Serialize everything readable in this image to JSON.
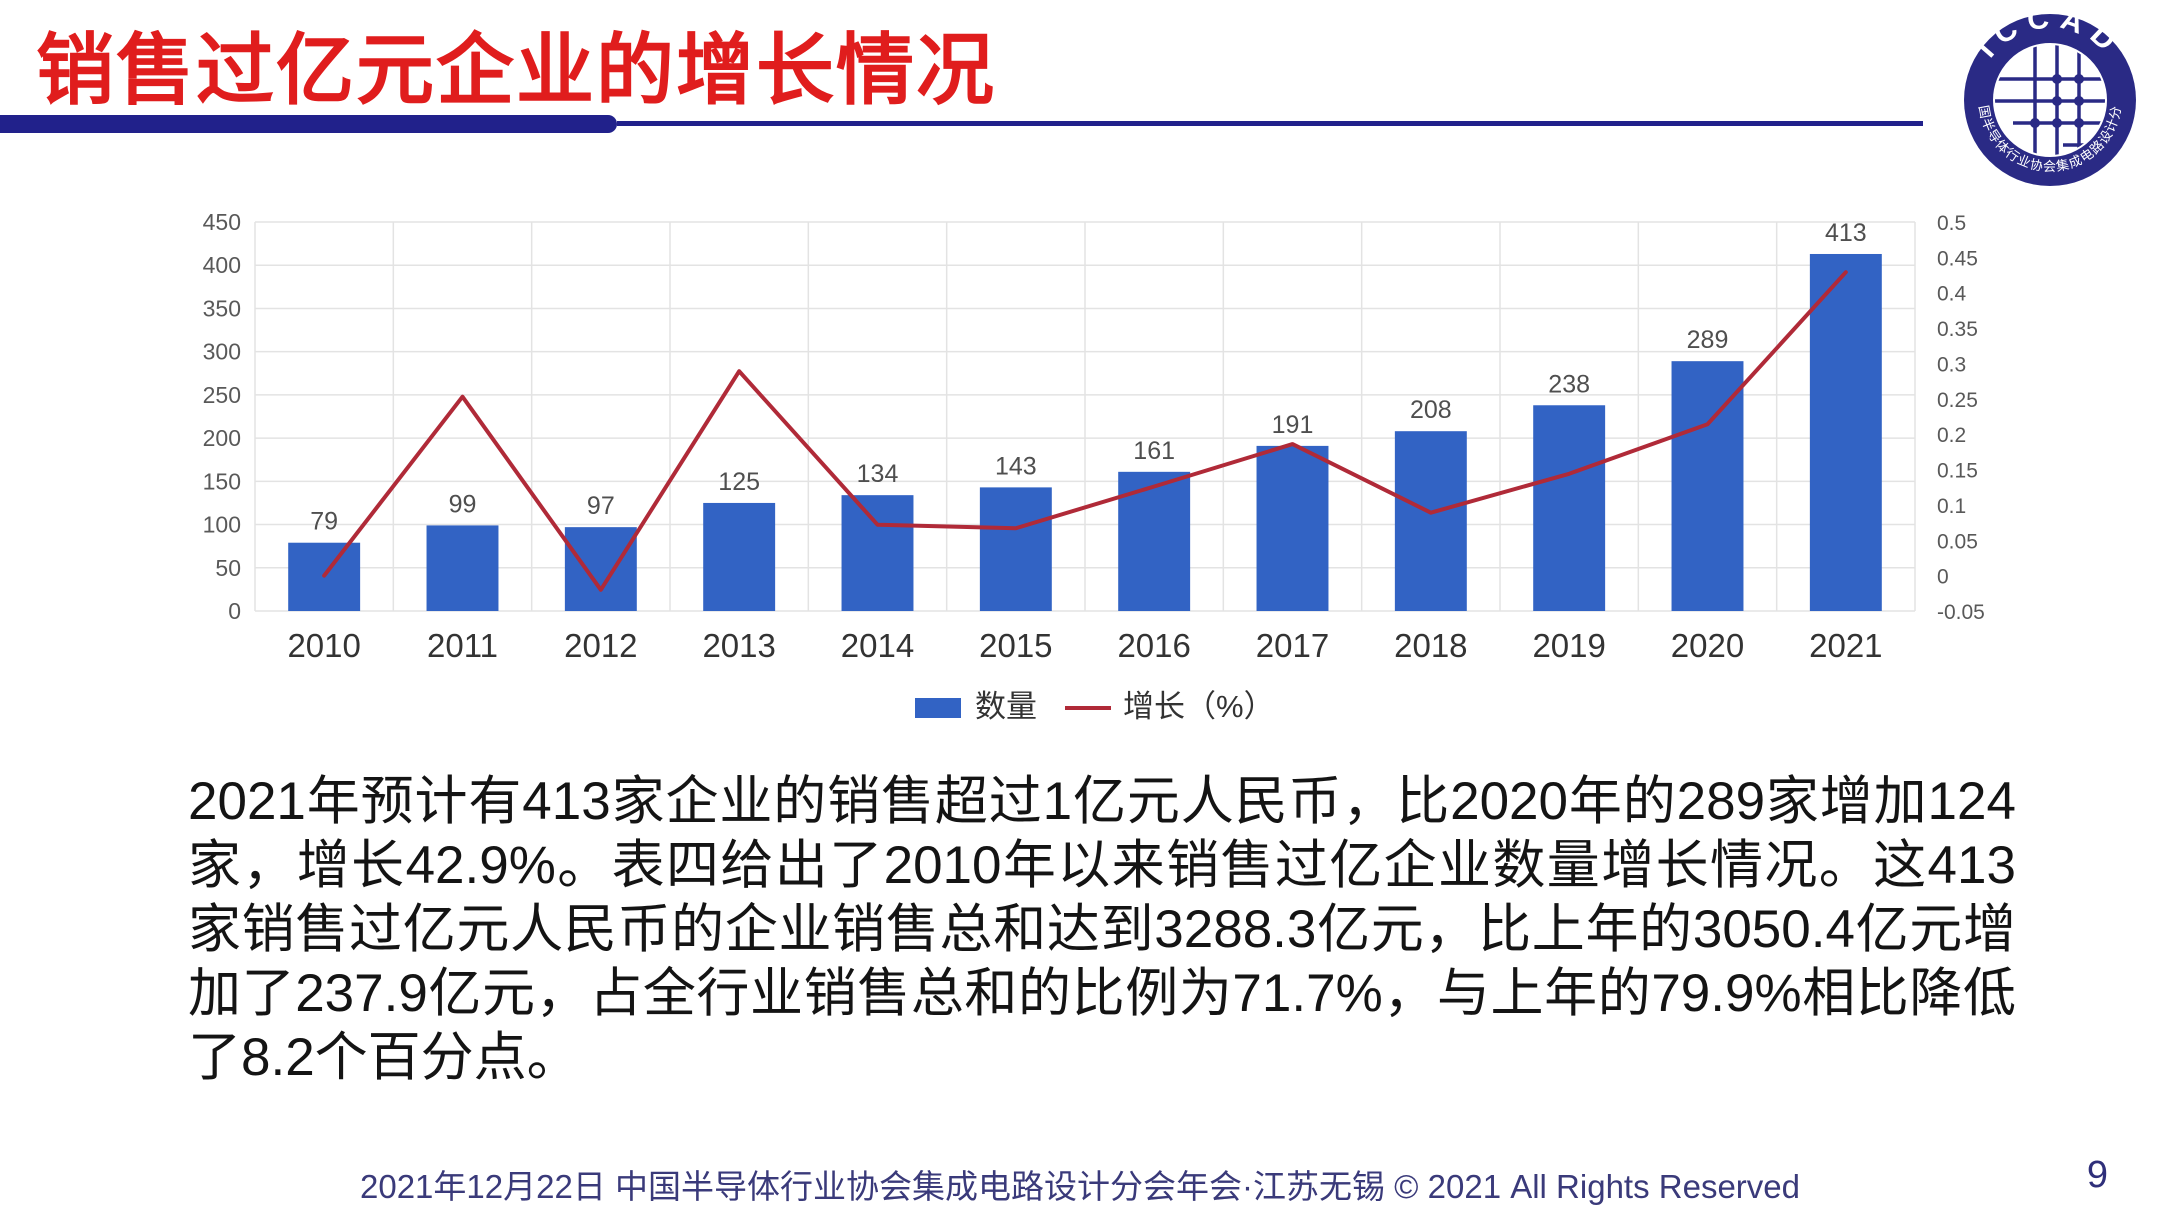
{
  "slide": {
    "title": "销售过亿元企业的增长情况",
    "body_paragraph": "2021年预计有413家企业的销售超过1亿元人民币，比2020年的289家增加124家，增长42.9%。表四给出了2010年以来销售过亿企业数量增长情况。这413家销售过亿元人民币的企业销售总和达到3288.3亿元，比上年的3050.4亿元增加了237.9亿元，占全行业销售总和的比例为71.7%，与上年的79.9%相比降低了8.2个百分点。",
    "footer": "2021年12月22日 中国半导体行业协会集成电路设计分会年会·江苏无锡 © 2021 All Rights Reserved",
    "page_number": "9"
  },
  "logo": {
    "top_text": "ICCAD",
    "ring_text": "中国半导体行业协会集成电路设计分会"
  },
  "colors": {
    "title_red": "#e01d1d",
    "navy": "#21218b",
    "bar_blue": "#3263c4",
    "line_red": "#b02a38",
    "grid": "#e3e3e3",
    "tick_text": "#595959",
    "year_text": "#333333",
    "data_label_text": "#4f4f4f",
    "legend_text": "#333333"
  },
  "chart_data": {
    "type": "bar",
    "title": "",
    "categories": [
      "2010",
      "2011",
      "2012",
      "2013",
      "2014",
      "2015",
      "2016",
      "2017",
      "2018",
      "2019",
      "2020",
      "2021"
    ],
    "series": [
      {
        "name": "数量",
        "type": "bar",
        "axis": "left",
        "values": [
          79,
          99,
          97,
          125,
          134,
          143,
          161,
          191,
          208,
          238,
          289,
          413
        ]
      },
      {
        "name": "增长（%）",
        "type": "line",
        "axis": "right",
        "values": [
          0.0,
          0.253,
          -0.02,
          0.289,
          0.072,
          0.067,
          0.126,
          0.186,
          0.089,
          0.144,
          0.214,
          0.429
        ]
      }
    ],
    "left_axis": {
      "min": 0,
      "max": 450,
      "step": 50
    },
    "right_axis": {
      "min": -0.05,
      "max": 0.5,
      "step": 0.05
    },
    "grid": true,
    "data_labels": true,
    "legend_position": "bottom"
  }
}
